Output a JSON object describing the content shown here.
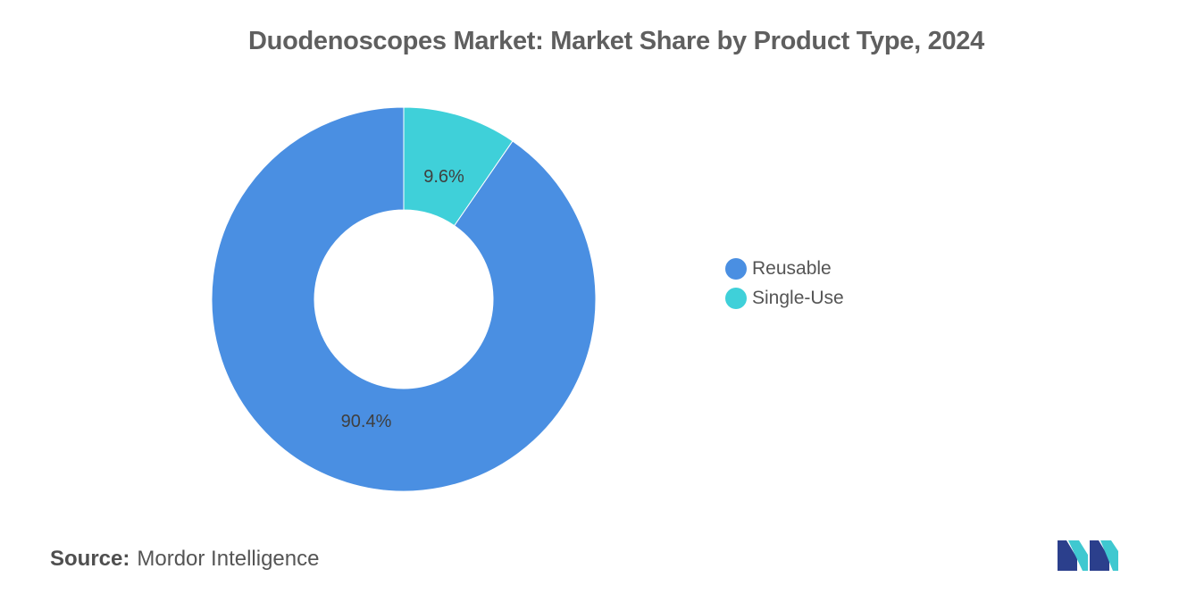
{
  "chart_data": {
    "type": "pie",
    "title": "Duodenoscopes Market: Market Share by Product Type, 2024",
    "categories": [
      "Reusable",
      "Single-Use"
    ],
    "values": [
      90.4,
      9.6
    ],
    "data_labels": [
      "90.4%",
      "9.6%"
    ],
    "colors": [
      "#4a8fe2",
      "#3fd0d9"
    ],
    "donut": true,
    "legend_placement": "right"
  },
  "source": {
    "label": "Source:",
    "text": "Mordor Intelligence"
  },
  "logo_icon": "mordor-intelligence-logo"
}
